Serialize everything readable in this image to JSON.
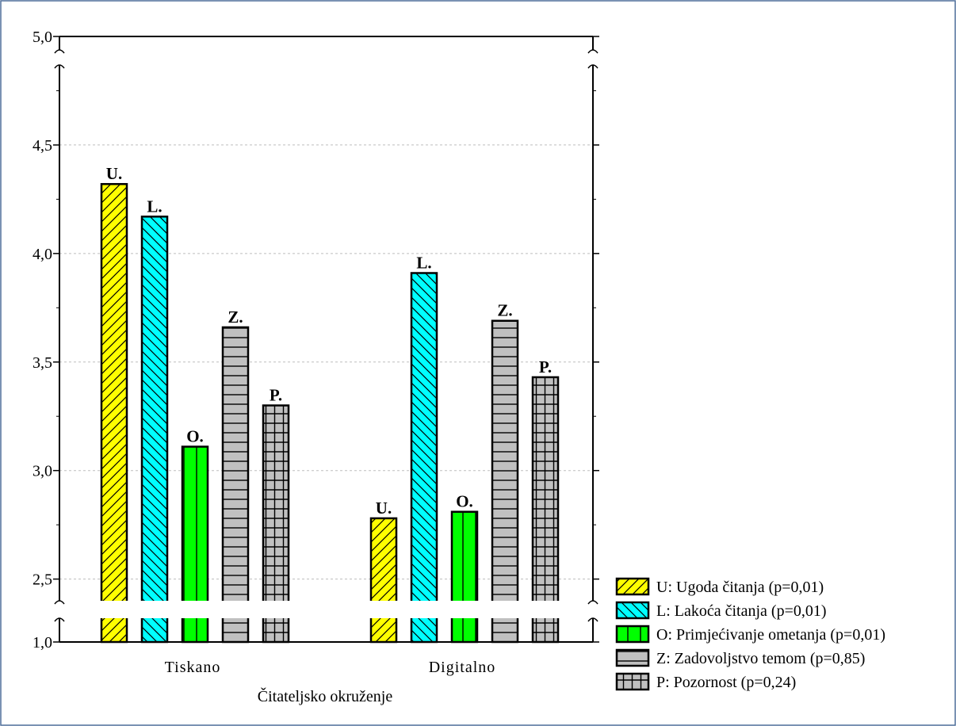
{
  "chart_data": {
    "type": "bar",
    "xlabel": "Čitateljsko okruženje",
    "ylabel": "",
    "categories": [
      "Tiskano",
      "Digitalno"
    ],
    "yticks": [
      "5,0",
      "4,5",
      "4,0",
      "3,5",
      "3,0",
      "2,5",
      "1,0"
    ],
    "ylim": [
      2.3,
      5.0
    ],
    "y_axis_break": {
      "below": 2.4,
      "bottom_value": 1.0
    },
    "grid": true,
    "legend_position": "bottom-right",
    "series": [
      {
        "key": "U",
        "name": "U: Ugoda čitanja (p=0,01)",
        "label": "U.",
        "values": [
          4.32,
          2.78
        ],
        "color": "#ffff00",
        "pattern": "diag-forward"
      },
      {
        "key": "L",
        "name": "L: Lakoća čitanja (p=0,01)",
        "label": "L.",
        "values": [
          4.17,
          3.91
        ],
        "color": "#00ffff",
        "pattern": "diag-back"
      },
      {
        "key": "O",
        "name": "O: Primjećivanje ometanja (p=0,01)",
        "label": "O.",
        "values": [
          3.11,
          2.81
        ],
        "color": "#00ff00",
        "pattern": "vertical"
      },
      {
        "key": "Z",
        "name": "Z: Zadovoljstvo temom (p=0,85)",
        "label": "Z.",
        "values": [
          3.66,
          3.69
        ],
        "color": "#c0c0c0",
        "pattern": "horizontal"
      },
      {
        "key": "P",
        "name": "P: Pozornost (p=0,24)",
        "label": "P.",
        "values": [
          3.3,
          3.43
        ],
        "color": "#c0c0c0",
        "pattern": "grid"
      }
    ]
  }
}
